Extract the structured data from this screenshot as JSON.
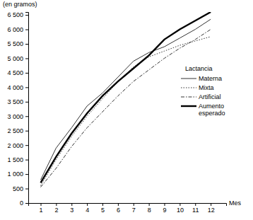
{
  "chart_data": {
    "type": "line",
    "y_label": "(en gramos)",
    "x_label": "Mes",
    "legend_title": "Lactancia",
    "legend": "right",
    "grid": false,
    "x": [
      1,
      2,
      3,
      4,
      5,
      6,
      7,
      8,
      9,
      10,
      11,
      12
    ],
    "xlim": [
      0.2,
      13.0
    ],
    "xticks": [
      1,
      2,
      3,
      4,
      5,
      6,
      7,
      8,
      9,
      10,
      11,
      12
    ],
    "ylim": [
      0,
      6600
    ],
    "yticks": [
      0,
      500,
      {
        "value": 1000,
        "label": "1 000"
      },
      {
        "value": 1500,
        "label": "1 500"
      },
      {
        "value": 2000,
        "label": "2 000"
      },
      {
        "value": 2500,
        "label": "2 500"
      },
      {
        "value": 3000,
        "label": "3 000"
      },
      {
        "value": 3500,
        "label": "3 500"
      },
      {
        "value": 4000,
        "label": "4 000"
      },
      {
        "value": 4500,
        "label": "4 500"
      },
      {
        "value": 5000,
        "label": "5 000"
      },
      {
        "value": 5500,
        "label": "5 500"
      },
      {
        "value": 6000,
        "label": "6 000"
      },
      {
        "value": 6500,
        "label": "6 500"
      }
    ],
    "series": [
      {
        "name": "Materna",
        "color": "#333333",
        "line_style": "solid",
        "values": [
          800,
          1900,
          2600,
          3350,
          3800,
          4350,
          4900,
          5200,
          5400,
          5700,
          6000,
          6350
        ]
      },
      {
        "name": "Mixta",
        "color": "#333333",
        "line_style": "dotted",
        "values": [
          600,
          1500,
          2300,
          3000,
          3600,
          4200,
          4700,
          5050,
          5250,
          5450,
          5600,
          5750
        ]
      },
      {
        "name": "Artificial",
        "color": "#333333",
        "line_style": "dashdot",
        "values": [
          550,
          1200,
          1950,
          2600,
          3150,
          3700,
          4200,
          4600,
          5000,
          5350,
          5650,
          6000
        ]
      },
      {
        "name": "Aumento esperado",
        "color": "#000000",
        "line_style": "thick",
        "values": [
          700,
          1600,
          2400,
          3100,
          3700,
          4200,
          4650,
          5100,
          5650,
          6000,
          6300,
          6600
        ]
      }
    ]
  }
}
